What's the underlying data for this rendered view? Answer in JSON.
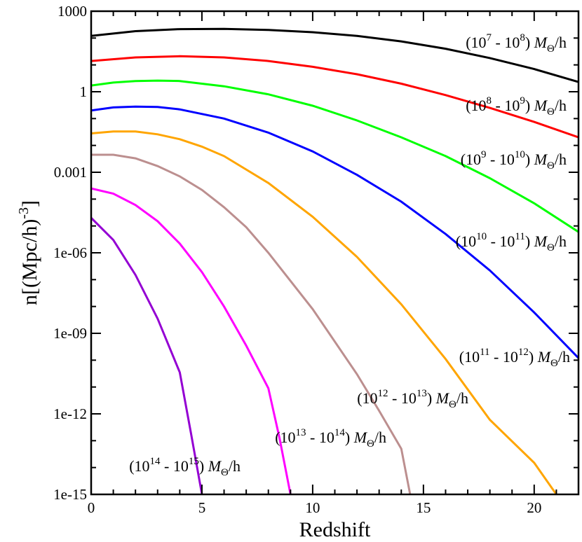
{
  "chart_data": {
    "type": "line",
    "title": "",
    "xlabel": "Redshift",
    "ylabel_parts": {
      "prefix": "n[(Mpc/h)",
      "sup": "-3",
      "suffix": "]"
    },
    "xlim": [
      0,
      22
    ],
    "ylim": [
      1e-15,
      1000
    ],
    "yscale": "log",
    "grid": false,
    "legend": "inline labels at right",
    "x_ticks": [
      {
        "value": 0,
        "label": "0"
      },
      {
        "value": 5,
        "label": "5"
      },
      {
        "value": 10,
        "label": "10"
      },
      {
        "value": 15,
        "label": "15"
      },
      {
        "value": 20,
        "label": "20"
      }
    ],
    "y_ticks": [
      {
        "value": 1000,
        "label": "1000"
      },
      {
        "value": 1,
        "label": "1"
      },
      {
        "value": 0.001,
        "label": "0.001"
      },
      {
        "value": 1e-06,
        "label": "1e-06"
      },
      {
        "value": 1e-09,
        "label": "1e-09"
      },
      {
        "value": 1e-12,
        "label": "1e-12"
      },
      {
        "value": 1e-15,
        "label": "1e-15"
      }
    ],
    "series": [
      {
        "label": {
          "open": "(10",
          "sup1": "7",
          "mid": " - 10",
          "sup2": "8",
          "close": ") ",
          "msym": "M",
          "sub": "Θ",
          "tail": "/h"
        },
        "color": "#000000",
        "points": [
          [
            0,
            120
          ],
          [
            2,
            180
          ],
          [
            4,
            215
          ],
          [
            6,
            220
          ],
          [
            8,
            200
          ],
          [
            10,
            165
          ],
          [
            12,
            120
          ],
          [
            14,
            75
          ],
          [
            16,
            40
          ],
          [
            18,
            18
          ],
          [
            20,
            7
          ],
          [
            22,
            2.3
          ]
        ]
      },
      {
        "label": {
          "open": "(10",
          "sup1": "8",
          "mid": " - 10",
          "sup2": "9",
          "close": ") ",
          "msym": "M",
          "sub": "Θ",
          "tail": "/h"
        },
        "color": "#ff0000",
        "points": [
          [
            0,
            14
          ],
          [
            2,
            19
          ],
          [
            4,
            21
          ],
          [
            6,
            19
          ],
          [
            8,
            14
          ],
          [
            10,
            8.5
          ],
          [
            12,
            4.5
          ],
          [
            14,
            2.0
          ],
          [
            16,
            0.75
          ],
          [
            18,
            0.25
          ],
          [
            20,
            0.075
          ],
          [
            22,
            0.02
          ]
        ]
      },
      {
        "label": {
          "open": "(10",
          "sup1": "9",
          "mid": " - 10",
          "sup2": "10",
          "close": ") ",
          "msym": "M",
          "sub": "Θ",
          "tail": "/h"
        },
        "color": "#00ff00",
        "points": [
          [
            0,
            1.7
          ],
          [
            1,
            2.2
          ],
          [
            2,
            2.5
          ],
          [
            3,
            2.6
          ],
          [
            4,
            2.5
          ],
          [
            6,
            1.6
          ],
          [
            8,
            0.8
          ],
          [
            10,
            0.3
          ],
          [
            12,
            0.085
          ],
          [
            14,
            0.02
          ],
          [
            16,
            0.004
          ],
          [
            18,
            0.0006
          ],
          [
            20,
            7e-05
          ],
          [
            22,
            6e-06
          ]
        ]
      },
      {
        "label": {
          "open": "(10",
          "sup1": "10",
          "mid": " - 10",
          "sup2": "11",
          "close": ") ",
          "msym": "M",
          "sub": "Θ",
          "tail": "/h"
        },
        "color": "#0000ff",
        "points": [
          [
            0,
            0.2
          ],
          [
            1,
            0.26
          ],
          [
            2,
            0.28
          ],
          [
            3,
            0.27
          ],
          [
            4,
            0.22
          ],
          [
            6,
            0.1
          ],
          [
            8,
            0.03
          ],
          [
            10,
            0.006
          ],
          [
            12,
            0.0008
          ],
          [
            14,
            8e-05
          ],
          [
            16,
            5e-06
          ],
          [
            18,
            2.2e-07
          ],
          [
            20,
            6e-09
          ],
          [
            22,
            1.2e-10
          ]
        ]
      },
      {
        "label": {
          "open": "(10",
          "sup1": "11",
          "mid": " - 10",
          "sup2": "12",
          "close": ") ",
          "msym": "M",
          "sub": "Θ",
          "tail": "/h"
        },
        "color": "#ffa500",
        "points": [
          [
            0,
            0.028
          ],
          [
            1,
            0.033
          ],
          [
            2,
            0.033
          ],
          [
            3,
            0.026
          ],
          [
            4,
            0.017
          ],
          [
            5,
            0.009
          ],
          [
            6,
            0.004
          ],
          [
            8,
            0.0004
          ],
          [
            10,
            2.2e-05
          ],
          [
            12,
            7e-07
          ],
          [
            14,
            1.2e-08
          ],
          [
            16,
            1.1e-10
          ],
          [
            18,
            6e-13
          ],
          [
            20,
            1.5e-14
          ],
          [
            21,
            1e-15
          ]
        ]
      },
      {
        "label": {
          "open": "(10",
          "sup1": "12",
          "mid": " - 10",
          "sup2": "13",
          "close": ") ",
          "msym": "M",
          "sub": "Θ",
          "tail": "/h"
        },
        "color": "#bc8f8f",
        "points": [
          [
            0,
            0.0045
          ],
          [
            1,
            0.0045
          ],
          [
            2,
            0.0033
          ],
          [
            3,
            0.0017
          ],
          [
            4,
            0.0007
          ],
          [
            5,
            0.00022
          ],
          [
            6,
            5e-05
          ],
          [
            7,
            9e-06
          ],
          [
            8,
            1e-06
          ],
          [
            10,
            8e-09
          ],
          [
            12,
            3e-11
          ],
          [
            13,
            1.3e-12
          ],
          [
            14,
            5e-14
          ],
          [
            14.4,
            1e-15
          ]
        ]
      },
      {
        "label": {
          "open": "(10",
          "sup1": "13",
          "mid": " - 10",
          "sup2": "14",
          "close": ") ",
          "msym": "M",
          "sub": "Θ",
          "tail": "/h"
        },
        "color": "#ff00ff",
        "points": [
          [
            0,
            0.00025
          ],
          [
            1,
            0.00016
          ],
          [
            2,
            6e-05
          ],
          [
            3,
            1.5e-05
          ],
          [
            4,
            2.2e-06
          ],
          [
            5,
            1.9e-07
          ],
          [
            6,
            1e-08
          ],
          [
            7,
            3.5e-10
          ],
          [
            8,
            9e-12
          ],
          [
            8.5,
            1.3e-13
          ],
          [
            9,
            1e-15
          ]
        ]
      },
      {
        "label": {
          "open": "(10",
          "sup1": "14",
          "mid": " - 10",
          "sup2": "15",
          "close": ") ",
          "msym": "M",
          "sub": "Θ",
          "tail": "/h"
        },
        "color": "#9400d3",
        "points": [
          [
            0,
            2e-05
          ],
          [
            1,
            3e-06
          ],
          [
            2,
            1.5e-07
          ],
          [
            3,
            3.5e-09
          ],
          [
            4,
            3.5e-11
          ],
          [
            4.5,
            2e-13
          ],
          [
            5,
            1e-15
          ]
        ]
      }
    ]
  }
}
